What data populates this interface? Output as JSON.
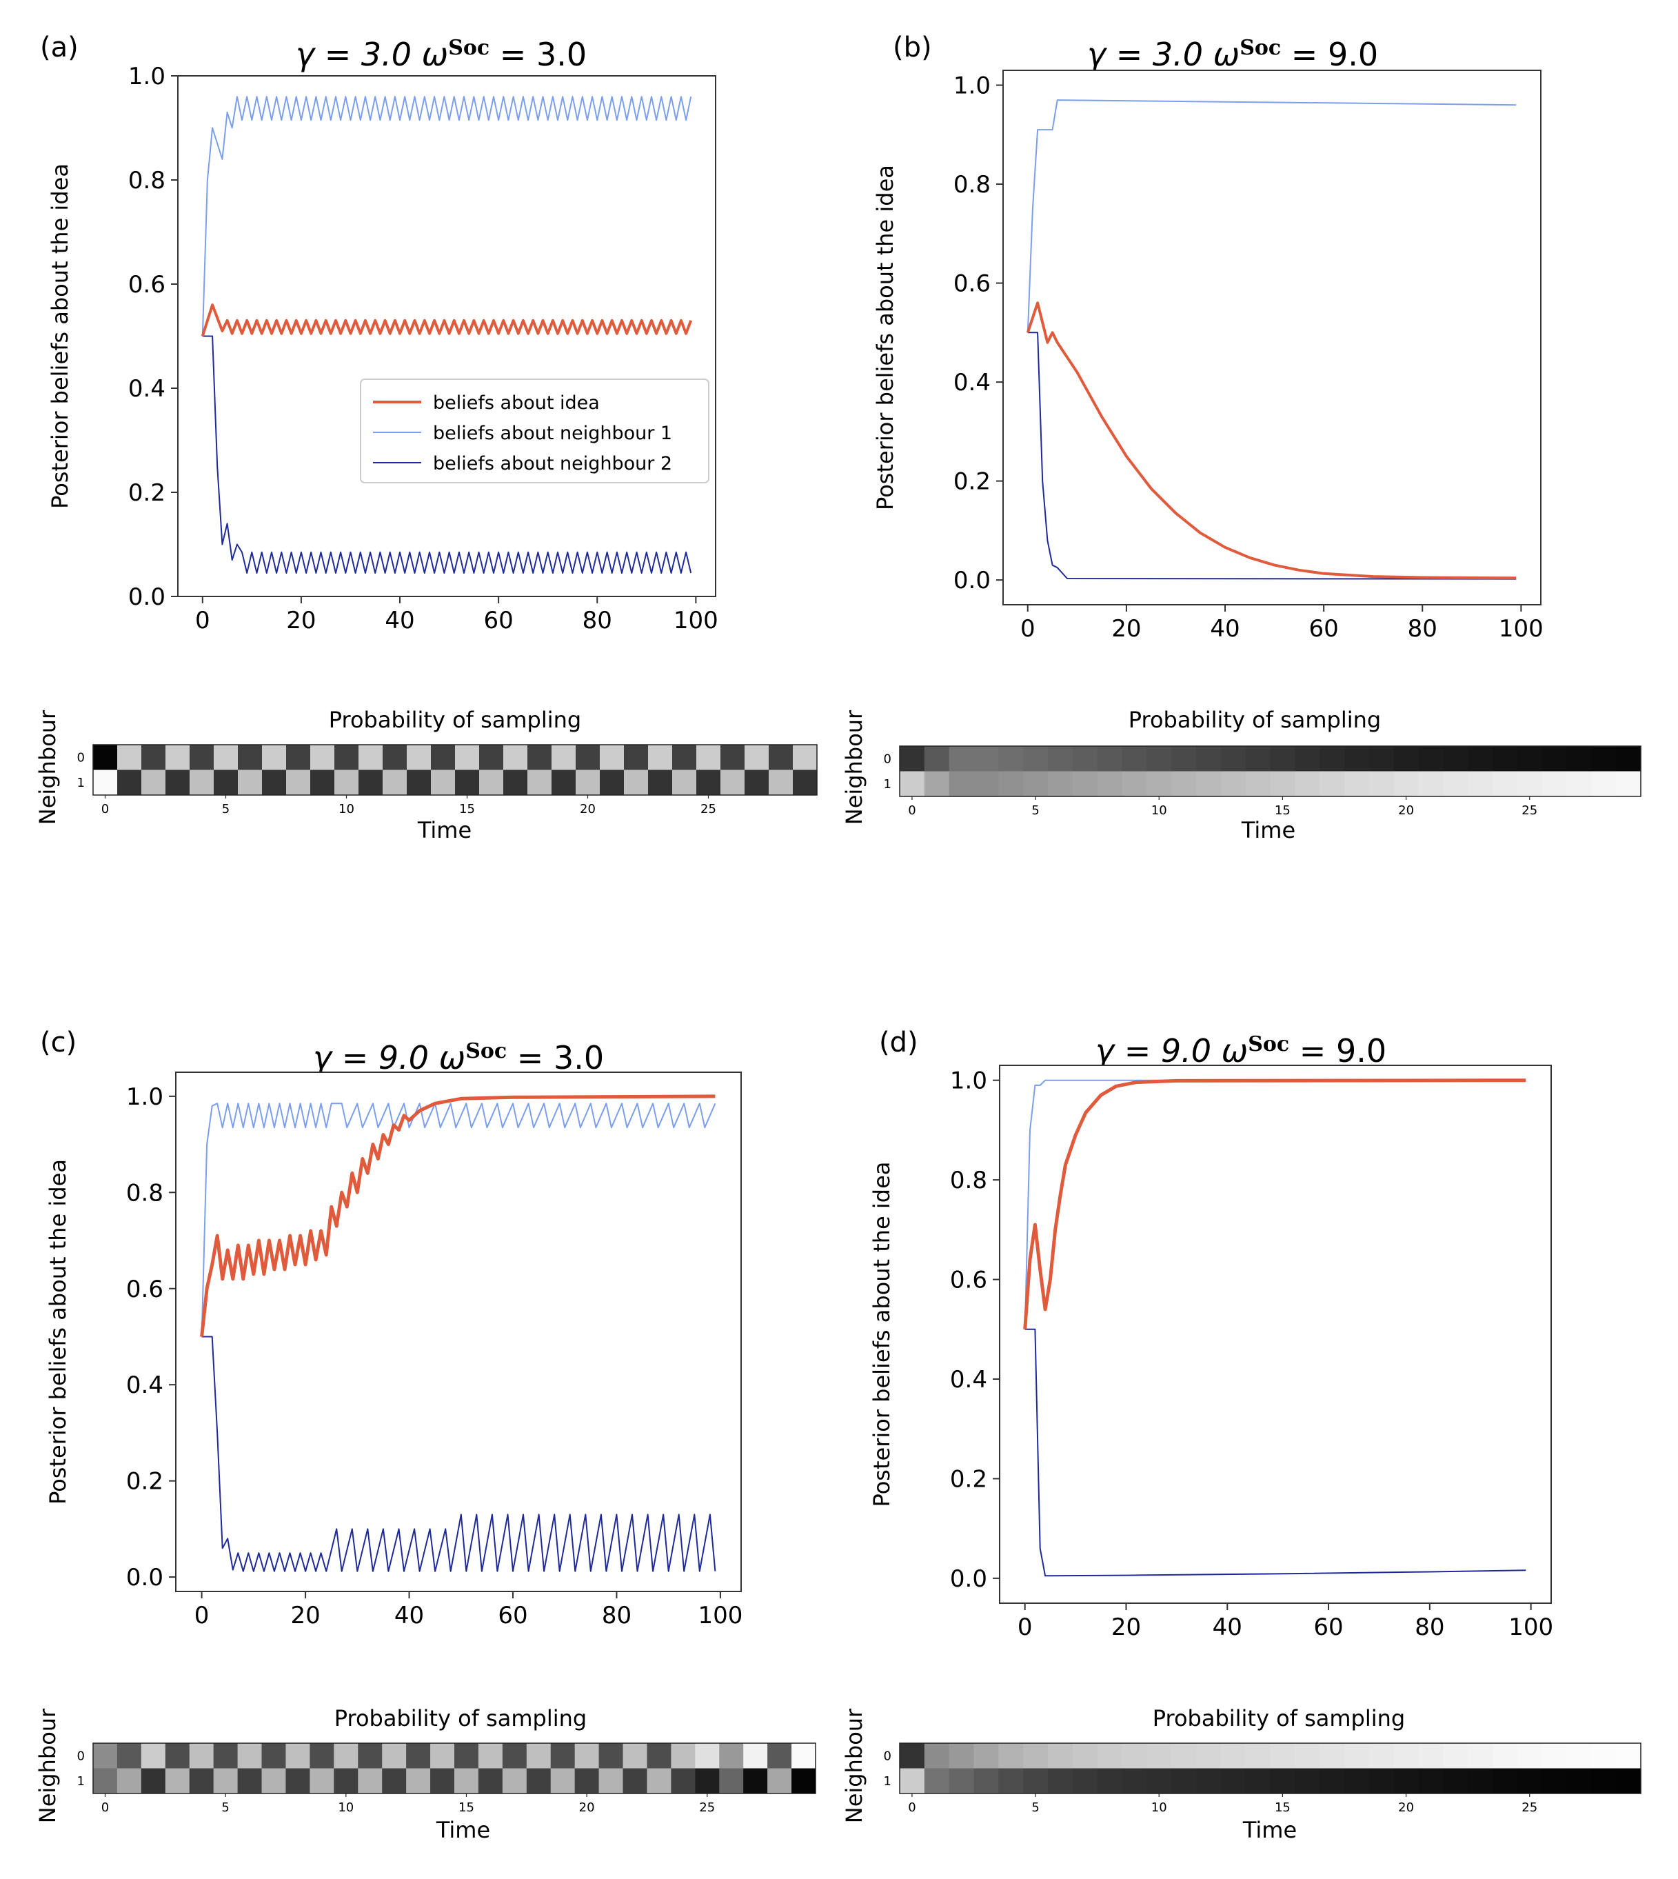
{
  "chart_data": [
    {
      "panel": "(a)",
      "type": "line",
      "title_gamma": "γ = 3.0",
      "title_omega": "ω",
      "title_sup": "Soc",
      "title_value": "= 3.0",
      "gamma": 3.0,
      "omega_soc": 3.0,
      "xlabel": "",
      "ylabel": "Posterior beliefs about the idea",
      "xlim": [
        -5,
        104
      ],
      "ylim": [
        0.0,
        1.0
      ],
      "xticks": [
        "0",
        "20",
        "40",
        "60",
        "80",
        "100"
      ],
      "yticks": [
        "0.0",
        "0.2",
        "0.4",
        "0.6",
        "0.8",
        "1.0"
      ],
      "legend": [
        "beliefs about idea",
        "beliefs about neighbour 1",
        "beliefs about neighbour 2"
      ],
      "legend_position": "center-right",
      "series": [
        {
          "name": "beliefs about idea",
          "color": "#e05a3c",
          "width": 4,
          "x_end": 99,
          "points": [
            [
              0,
              0.5
            ],
            [
              2,
              0.56
            ],
            [
              4,
              0.51
            ]
          ],
          "steady": {
            "from": 4,
            "high": 0.53,
            "low": 0.505
          }
        },
        {
          "name": "beliefs about neighbour 1",
          "color": "#7b9fee",
          "width": 2,
          "x_end": 99,
          "points": [
            [
              0,
              0.5
            ],
            [
              1,
              0.8
            ],
            [
              2,
              0.9
            ],
            [
              3,
              0.87
            ],
            [
              4,
              0.84
            ],
            [
              5,
              0.93
            ],
            [
              6,
              0.9
            ]
          ],
          "steady": {
            "from": 6,
            "high": 0.96,
            "low": 0.915
          }
        },
        {
          "name": "beliefs about neighbour 2",
          "color": "#1f2a9a",
          "width": 2,
          "x_end": 99,
          "points": [
            [
              0,
              0.5
            ],
            [
              2,
              0.5
            ],
            [
              3,
              0.25
            ],
            [
              4,
              0.1
            ],
            [
              5,
              0.14
            ],
            [
              6,
              0.07
            ],
            [
              7,
              0.1
            ]
          ],
          "steady": {
            "from": 7,
            "high": 0.085,
            "low": 0.045
          }
        }
      ],
      "heatmap": {
        "title": "Probability of sampling",
        "xlabel": "Time",
        "ylabel": "Neighbour",
        "row_labels": [
          "0",
          "1"
        ],
        "xticks": [
          "0",
          "5",
          "10",
          "15",
          "20",
          "25"
        ],
        "columns": 30,
        "row0": [
          0.02,
          0.8,
          0.25,
          0.8,
          0.25,
          0.8,
          0.25,
          0.8,
          0.25,
          0.8,
          0.25,
          0.8,
          0.25,
          0.8,
          0.25,
          0.8,
          0.25,
          0.8,
          0.25,
          0.8,
          0.25,
          0.8,
          0.25,
          0.8,
          0.25,
          0.8,
          0.25,
          0.8,
          0.25,
          0.8
        ],
        "row1": [
          0.98,
          0.2,
          0.75,
          0.2,
          0.75,
          0.2,
          0.75,
          0.2,
          0.75,
          0.2,
          0.75,
          0.2,
          0.75,
          0.2,
          0.75,
          0.2,
          0.75,
          0.2,
          0.75,
          0.2,
          0.75,
          0.2,
          0.75,
          0.2,
          0.75,
          0.2,
          0.75,
          0.2,
          0.75,
          0.2
        ]
      }
    },
    {
      "panel": "(b)",
      "type": "line",
      "title_gamma": "γ = 3.0",
      "title_omega": "ω",
      "title_sup": "Soc",
      "title_value": "= 9.0",
      "gamma": 3.0,
      "omega_soc": 9.0,
      "xlabel": "",
      "ylabel": "Posterior beliefs about the idea",
      "xlim": [
        -5,
        104
      ],
      "ylim": [
        -0.05,
        1.03
      ],
      "xticks": [
        "0",
        "20",
        "40",
        "60",
        "80",
        "100"
      ],
      "yticks": [
        "0.0",
        "0.2",
        "0.4",
        "0.6",
        "0.8",
        "1.0"
      ],
      "series": [
        {
          "name": "beliefs about idea",
          "color": "#e05a3c",
          "width": 4,
          "x_end": 99,
          "points": [
            [
              0,
              0.5
            ],
            [
              2,
              0.56
            ],
            [
              4,
              0.48
            ],
            [
              5,
              0.5
            ],
            [
              6,
              0.48
            ],
            [
              10,
              0.42
            ],
            [
              15,
              0.33
            ],
            [
              20,
              0.25
            ],
            [
              25,
              0.185
            ],
            [
              30,
              0.135
            ],
            [
              35,
              0.095
            ],
            [
              40,
              0.066
            ],
            [
              45,
              0.045
            ],
            [
              50,
              0.03
            ],
            [
              55,
              0.02
            ],
            [
              60,
              0.013
            ],
            [
              70,
              0.007
            ],
            [
              80,
              0.005
            ],
            [
              99,
              0.004
            ]
          ]
        },
        {
          "name": "beliefs about neighbour 1",
          "color": "#7b9fee",
          "width": 2,
          "x_end": 99,
          "points": [
            [
              0,
              0.5
            ],
            [
              1,
              0.75
            ],
            [
              2,
              0.91
            ],
            [
              4,
              0.91
            ],
            [
              5,
              0.91
            ],
            [
              6,
              0.97
            ],
            [
              99,
              0.96
            ]
          ]
        },
        {
          "name": "beliefs about neighbour 2",
          "color": "#1f2a9a",
          "width": 2,
          "x_end": 99,
          "points": [
            [
              0,
              0.5
            ],
            [
              2,
              0.5
            ],
            [
              3,
              0.2
            ],
            [
              4,
              0.08
            ],
            [
              5,
              0.03
            ],
            [
              6,
              0.025
            ],
            [
              8,
              0.003
            ],
            [
              99,
              0.002
            ]
          ]
        }
      ],
      "heatmap": {
        "title": "Probability of sampling",
        "xlabel": "Time",
        "ylabel": "Neighbour",
        "row_labels": [
          "0",
          "1"
        ],
        "xticks": [
          "0",
          "5",
          "10",
          "15",
          "20",
          "25"
        ],
        "columns": 30,
        "row0": [
          0.2,
          0.35,
          0.45,
          0.45,
          0.43,
          0.41,
          0.39,
          0.37,
          0.35,
          0.33,
          0.31,
          0.29,
          0.27,
          0.25,
          0.23,
          0.21,
          0.19,
          0.17,
          0.15,
          0.14,
          0.12,
          0.11,
          0.1,
          0.09,
          0.08,
          0.07,
          0.06,
          0.05,
          0.04,
          0.03
        ],
        "row1": [
          0.8,
          0.65,
          0.55,
          0.55,
          0.57,
          0.59,
          0.61,
          0.63,
          0.65,
          0.67,
          0.69,
          0.71,
          0.73,
          0.75,
          0.77,
          0.79,
          0.81,
          0.83,
          0.85,
          0.86,
          0.88,
          0.89,
          0.9,
          0.91,
          0.92,
          0.93,
          0.94,
          0.95,
          0.96,
          0.97
        ]
      }
    },
    {
      "panel": "(c)",
      "type": "line",
      "title_gamma": "γ = 9.0",
      "title_omega": "ω",
      "title_sup": "Soc",
      "title_value": "= 3.0",
      "gamma": 9.0,
      "omega_soc": 3.0,
      "xlabel": "",
      "ylabel": "Posterior beliefs about the idea",
      "xlim": [
        -5,
        104
      ],
      "ylim": [
        -0.03,
        1.05
      ],
      "xticks": [
        "0",
        "20",
        "40",
        "60",
        "80",
        "100"
      ],
      "yticks": [
        "0.0",
        "0.2",
        "0.4",
        "0.6",
        "0.8",
        "1.0"
      ],
      "series": [
        {
          "name": "beliefs about idea",
          "color": "#e05a3c",
          "width": 5,
          "x_end": 99,
          "points": [
            [
              0,
              0.5
            ],
            [
              1,
              0.6
            ],
            [
              2,
              0.65
            ],
            [
              3,
              0.71
            ],
            [
              4,
              0.62
            ],
            [
              5,
              0.68
            ],
            [
              6,
              0.62
            ],
            [
              7,
              0.69
            ],
            [
              8,
              0.62
            ],
            [
              9,
              0.69
            ],
            [
              10,
              0.63
            ],
            [
              11,
              0.7
            ],
            [
              12,
              0.63
            ],
            [
              13,
              0.7
            ],
            [
              14,
              0.64
            ],
            [
              15,
              0.7
            ],
            [
              16,
              0.64
            ],
            [
              17,
              0.71
            ],
            [
              18,
              0.65
            ],
            [
              19,
              0.71
            ],
            [
              20,
              0.65
            ],
            [
              21,
              0.72
            ],
            [
              22,
              0.66
            ],
            [
              23,
              0.72
            ],
            [
              24,
              0.67
            ],
            [
              25,
              0.77
            ],
            [
              26,
              0.73
            ],
            [
              27,
              0.8
            ],
            [
              28,
              0.77
            ],
            [
              29,
              0.84
            ],
            [
              30,
              0.8
            ],
            [
              31,
              0.87
            ],
            [
              32,
              0.84
            ],
            [
              33,
              0.9
            ],
            [
              34,
              0.87
            ],
            [
              35,
              0.92
            ],
            [
              36,
              0.9
            ],
            [
              37,
              0.94
            ],
            [
              38,
              0.93
            ],
            [
              39,
              0.96
            ],
            [
              40,
              0.95
            ],
            [
              42,
              0.97
            ],
            [
              45,
              0.985
            ],
            [
              50,
              0.995
            ],
            [
              60,
              0.998
            ],
            [
              99,
              1.0
            ]
          ]
        },
        {
          "name": "beliefs about neighbour 1",
          "color": "#7b9fee",
          "width": 2,
          "x_end": 99,
          "points": [
            [
              0,
              0.5
            ],
            [
              1,
              0.9
            ],
            [
              2,
              0.98
            ]
          ],
          "steady": {
            "from": 2,
            "high": 0.985,
            "low": 0.935,
            "period_change_at": 25,
            "period2": 3
          }
        },
        {
          "name": "beliefs about neighbour 2",
          "color": "#1f2a9a",
          "width": 2,
          "x_end": 99,
          "points": [
            [
              0,
              0.5
            ],
            [
              2,
              0.5
            ],
            [
              3,
              0.3
            ],
            [
              4,
              0.06
            ],
            [
              5,
              0.08
            ],
            [
              6,
              0.015
            ]
          ],
          "steady": {
            "from": 6,
            "high": 0.05,
            "low": 0.012,
            "change_at": 24,
            "high2": 0.1,
            "high3": 0.13,
            "period2": 3
          }
        }
      ],
      "heatmap": {
        "title": "Probability of sampling",
        "xlabel": "Time",
        "ylabel": "Neighbour",
        "row_labels": [
          "0",
          "1"
        ],
        "xticks": [
          "0",
          "5",
          "10",
          "15",
          "20",
          "25"
        ],
        "columns": 30,
        "row0": [
          0.55,
          0.35,
          0.8,
          0.3,
          0.75,
          0.3,
          0.75,
          0.3,
          0.75,
          0.3,
          0.75,
          0.3,
          0.75,
          0.3,
          0.75,
          0.3,
          0.75,
          0.3,
          0.75,
          0.3,
          0.75,
          0.3,
          0.75,
          0.3,
          0.75,
          0.88,
          0.6,
          0.95,
          0.35,
          0.98
        ],
        "row1": [
          0.45,
          0.65,
          0.2,
          0.7,
          0.25,
          0.7,
          0.25,
          0.7,
          0.25,
          0.7,
          0.25,
          0.7,
          0.25,
          0.7,
          0.25,
          0.7,
          0.25,
          0.7,
          0.25,
          0.7,
          0.25,
          0.7,
          0.25,
          0.7,
          0.25,
          0.12,
          0.4,
          0.05,
          0.65,
          0.02
        ]
      }
    },
    {
      "panel": "(d)",
      "type": "line",
      "title_gamma": "γ = 9.0",
      "title_omega": "ω",
      "title_sup": "Soc",
      "title_value": "= 9.0",
      "gamma": 9.0,
      "omega_soc": 9.0,
      "xlabel": "",
      "ylabel": "Posterior beliefs about the idea",
      "xlim": [
        -5,
        104
      ],
      "ylim": [
        -0.05,
        1.03
      ],
      "xticks": [
        "0",
        "20",
        "40",
        "60",
        "80",
        "100"
      ],
      "yticks": [
        "0.0",
        "0.2",
        "0.4",
        "0.6",
        "0.8",
        "1.0"
      ],
      "series": [
        {
          "name": "beliefs about idea",
          "color": "#e05a3c",
          "width": 5,
          "x_end": 99,
          "points": [
            [
              0,
              0.5
            ],
            [
              1,
              0.64
            ],
            [
              2,
              0.71
            ],
            [
              3,
              0.62
            ],
            [
              4,
              0.54
            ],
            [
              5,
              0.6
            ],
            [
              6,
              0.7
            ],
            [
              7,
              0.77
            ],
            [
              8,
              0.83
            ],
            [
              10,
              0.89
            ],
            [
              12,
              0.935
            ],
            [
              15,
              0.97
            ],
            [
              18,
              0.988
            ],
            [
              22,
              0.996
            ],
            [
              30,
              0.999
            ],
            [
              99,
              1.0
            ]
          ]
        },
        {
          "name": "beliefs about neighbour 1",
          "color": "#7b9fee",
          "width": 2,
          "x_end": 99,
          "points": [
            [
              0,
              0.5
            ],
            [
              1,
              0.9
            ],
            [
              2,
              0.99
            ],
            [
              3,
              0.99
            ],
            [
              4,
              1.0
            ],
            [
              99,
              1.0
            ]
          ]
        },
        {
          "name": "beliefs about neighbour 2",
          "color": "#1f2a9a",
          "width": 2,
          "x_end": 99,
          "points": [
            [
              0,
              0.5
            ],
            [
              2,
              0.5
            ],
            [
              3,
              0.06
            ],
            [
              4,
              0.005
            ],
            [
              20,
              0.006
            ],
            [
              50,
              0.009
            ],
            [
              80,
              0.013
            ],
            [
              99,
              0.016
            ]
          ]
        }
      ],
      "heatmap": {
        "title": "Probability of sampling",
        "xlabel": "Time",
        "ylabel": "Neighbour",
        "row_labels": [
          "0",
          "1"
        ],
        "xticks": [
          "0",
          "5",
          "10",
          "15",
          "20",
          "25"
        ],
        "columns": 30,
        "row0": [
          0.2,
          0.55,
          0.6,
          0.65,
          0.7,
          0.73,
          0.76,
          0.78,
          0.8,
          0.81,
          0.82,
          0.83,
          0.84,
          0.85,
          0.86,
          0.87,
          0.88,
          0.89,
          0.9,
          0.91,
          0.92,
          0.93,
          0.94,
          0.95,
          0.96,
          0.97,
          0.975,
          0.98,
          0.985,
          0.99
        ],
        "row1": [
          0.8,
          0.45,
          0.4,
          0.35,
          0.3,
          0.27,
          0.24,
          0.22,
          0.2,
          0.19,
          0.18,
          0.17,
          0.16,
          0.15,
          0.14,
          0.13,
          0.12,
          0.11,
          0.1,
          0.09,
          0.08,
          0.07,
          0.06,
          0.05,
          0.04,
          0.03,
          0.025,
          0.02,
          0.015,
          0.01
        ]
      }
    }
  ]
}
